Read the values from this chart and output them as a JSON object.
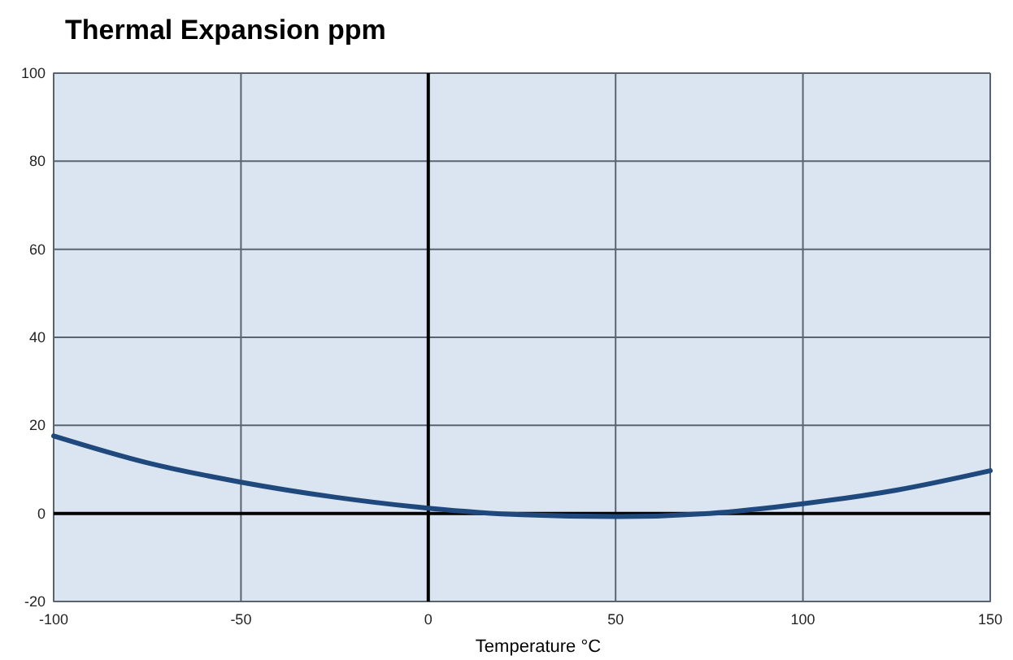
{
  "chart_data": {
    "type": "line",
    "title": "Thermal Expansion ppm",
    "xlabel": "Temperature  °C",
    "x": [
      -100,
      -75,
      -50,
      -25,
      0,
      25,
      50,
      75,
      100,
      125,
      150
    ],
    "series": [
      {
        "color": "#1f497d",
        "values": [
          17.6,
          11.5,
          7.1,
          3.7,
          1.2,
          -0.3,
          -0.7,
          0,
          2.2,
          5.3,
          9.7
        ]
      }
    ],
    "xlim": [
      -100,
      150
    ],
    "xticks": [
      -100,
      -50,
      0,
      50,
      100,
      150
    ],
    "ylim": [
      -20,
      100
    ],
    "yticks": [
      -20,
      0,
      20,
      40,
      60,
      80,
      100
    ],
    "grid": true,
    "marker": "none",
    "line_style": "solid"
  }
}
